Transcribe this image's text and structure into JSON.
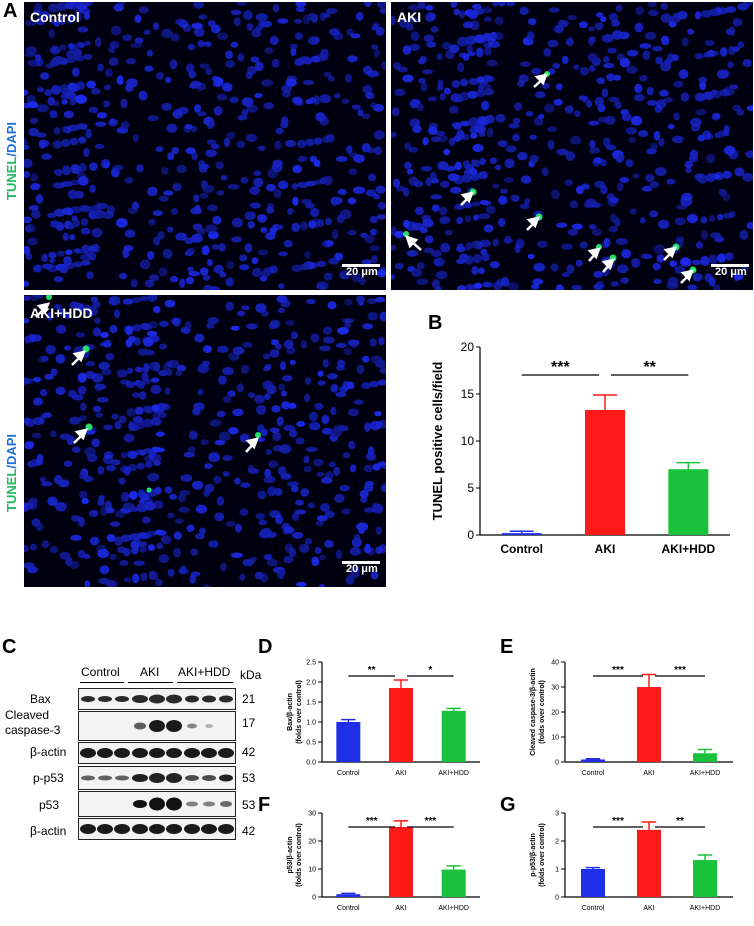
{
  "panels": {
    "A": "A",
    "B": "B",
    "C": "C",
    "D": "D",
    "E": "E",
    "F": "F",
    "G": "G"
  },
  "micrographs": [
    {
      "label": "Control",
      "scale": "20 μm"
    },
    {
      "label": "AKI",
      "scale": "20 μm"
    },
    {
      "label": "AKI+HDD",
      "scale": "20 μm"
    }
  ],
  "stain": {
    "tunel": "TUNEL",
    "slash": "/",
    "dapi": "DAPI"
  },
  "colors": {
    "dapi": "#1a2fd6",
    "tunel": "#22e06b",
    "control_bar": "#1f2fe8",
    "aki_bar": "#ff1a1a",
    "hdd_bar": "#19c23a"
  },
  "blot": {
    "groups": [
      "Control",
      "AKI",
      "AKI+HDD"
    ],
    "kda_header": "kDa",
    "rows": [
      {
        "label": "Bax",
        "kda": "21"
      },
      {
        "label": "Cleaved",
        "label2": "caspase-3",
        "kda": "17"
      },
      {
        "label": "β-actin",
        "kda": "42"
      },
      {
        "label": "p-p53",
        "kda": "53"
      },
      {
        "label": "p53",
        "kda": "53"
      },
      {
        "label": "β-actin",
        "kda": "42"
      }
    ]
  },
  "chart_data": [
    {
      "panel": "B",
      "type": "bar",
      "categories": [
        "Control",
        "AKI",
        "AKI+HDD"
      ],
      "values": [
        0.2,
        13.3,
        7.0
      ],
      "errors": [
        0.2,
        1.6,
        0.7
      ],
      "ylabel": "TUNEL positive cells/field",
      "ylim": [
        0,
        20
      ],
      "yticks": [
        "0",
        "5",
        "10",
        "15",
        "20"
      ],
      "significance": [
        "***",
        "**"
      ]
    },
    {
      "panel": "D",
      "type": "bar",
      "categories": [
        "Control",
        "AKI",
        "AKI+HDD"
      ],
      "values": [
        1.0,
        1.85,
        1.28
      ],
      "errors": [
        0.06,
        0.2,
        0.06
      ],
      "ylabel": "Bax/β-actin",
      "ylabel2": "(folds over control)",
      "ylim": [
        0,
        2.5
      ],
      "yticks": [
        "0.0",
        "0.5",
        "1.0",
        "1.5",
        "2.0",
        "2.5"
      ],
      "significance": [
        "**",
        "*"
      ]
    },
    {
      "panel": "E",
      "type": "bar",
      "categories": [
        "Control",
        "AKI",
        "AKI+HDD"
      ],
      "values": [
        1.0,
        30.0,
        3.5
      ],
      "errors": [
        0.3,
        5.0,
        1.5
      ],
      "ylabel": "Cleaved caspase-3/β-actin",
      "ylabel2": "(folds over control)",
      "ylim": [
        0,
        40
      ],
      "yticks": [
        "0",
        "10",
        "20",
        "30",
        "40"
      ],
      "significance": [
        "***",
        "***"
      ]
    },
    {
      "panel": "F",
      "type": "bar",
      "categories": [
        "Control",
        "AKI",
        "AKI+HDD"
      ],
      "values": [
        1.0,
        25.0,
        9.8
      ],
      "errors": [
        0.3,
        2.2,
        1.3
      ],
      "ylabel": "p53/β-actin",
      "ylabel2": "(folds over control)",
      "ylim": [
        0,
        30
      ],
      "yticks": [
        "0",
        "10",
        "20",
        "30"
      ],
      "significance": [
        "***",
        "***"
      ]
    },
    {
      "panel": "G",
      "type": "bar",
      "categories": [
        "Control",
        "AKI",
        "AKI+HDD"
      ],
      "values": [
        1.0,
        2.4,
        1.32
      ],
      "errors": [
        0.05,
        0.28,
        0.18
      ],
      "ylabel": "p-p53/β-actin",
      "ylabel2": "(folds over control)",
      "ylim": [
        0,
        3
      ],
      "yticks": [
        "0",
        "1",
        "2",
        "3"
      ],
      "significance": [
        "***",
        "**"
      ]
    }
  ]
}
